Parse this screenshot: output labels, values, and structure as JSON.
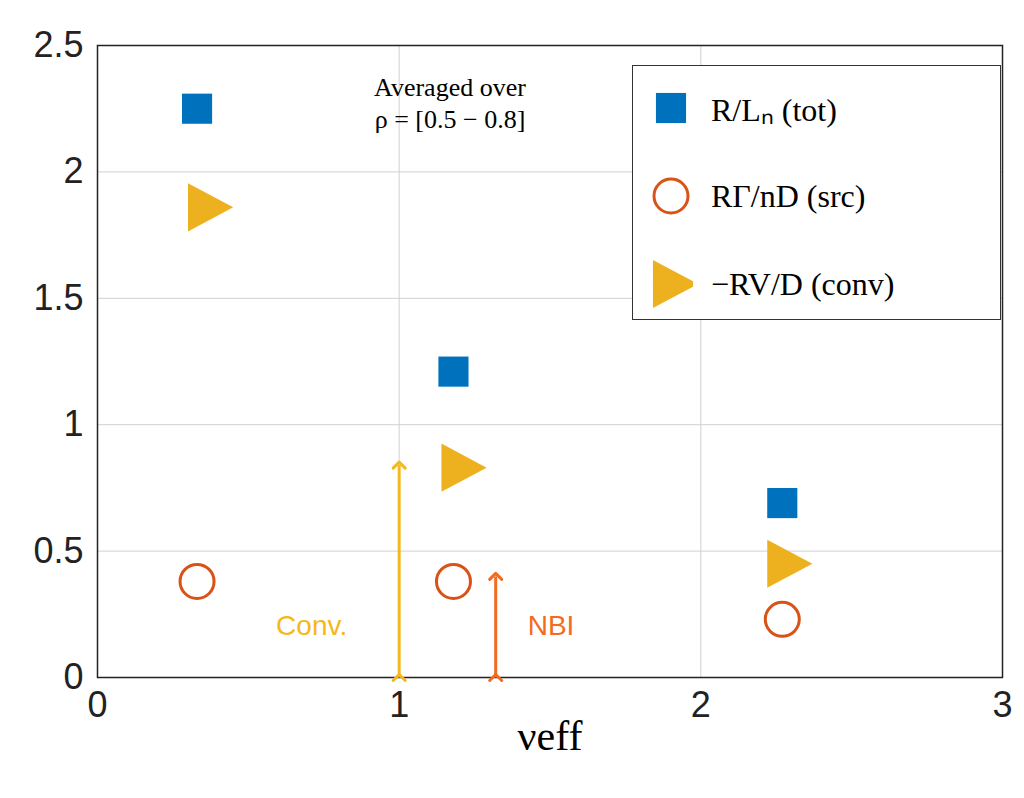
{
  "chart_data": {
    "type": "scatter",
    "xlabel": "νeff",
    "note": [
      "Averaged over",
      "ρ = [0.5 − 0.8]"
    ],
    "xlim": [
      0,
      3
    ],
    "xticks": [
      0,
      1,
      2,
      3
    ],
    "ylim": [
      0,
      2.5
    ],
    "yticks": [
      0,
      0.5,
      1,
      1.5,
      2,
      2.5
    ],
    "grid": true,
    "legend": "upper right",
    "series": [
      {
        "name": "R/Lₙ (tot)",
        "color": "#0072BD",
        "marker": "square",
        "x": [
          0.33,
          1.18,
          2.27
        ],
        "values": [
          2.25,
          1.21,
          0.69
        ]
      },
      {
        "name": "RΓ/nD (src)",
        "color": "#D95319",
        "marker": "circle-open",
        "x": [
          0.33,
          1.18,
          2.27
        ],
        "values": [
          0.38,
          0.38,
          0.23
        ]
      },
      {
        "name": "−RV/D (conv)",
        "color": "#EDB120",
        "marker": "triangle-right",
        "x": [
          0.36,
          1.2,
          2.28
        ],
        "values": [
          1.86,
          0.83,
          0.45
        ]
      }
    ],
    "arrows": [
      {
        "label": "Conv.",
        "color": "#F5B81C",
        "x": 1.0,
        "y": [
          0,
          0.84
        ]
      },
      {
        "label": "NBI",
        "color": "#F26B21",
        "x": 1.32,
        "y": [
          0,
          0.4
        ]
      }
    ]
  }
}
